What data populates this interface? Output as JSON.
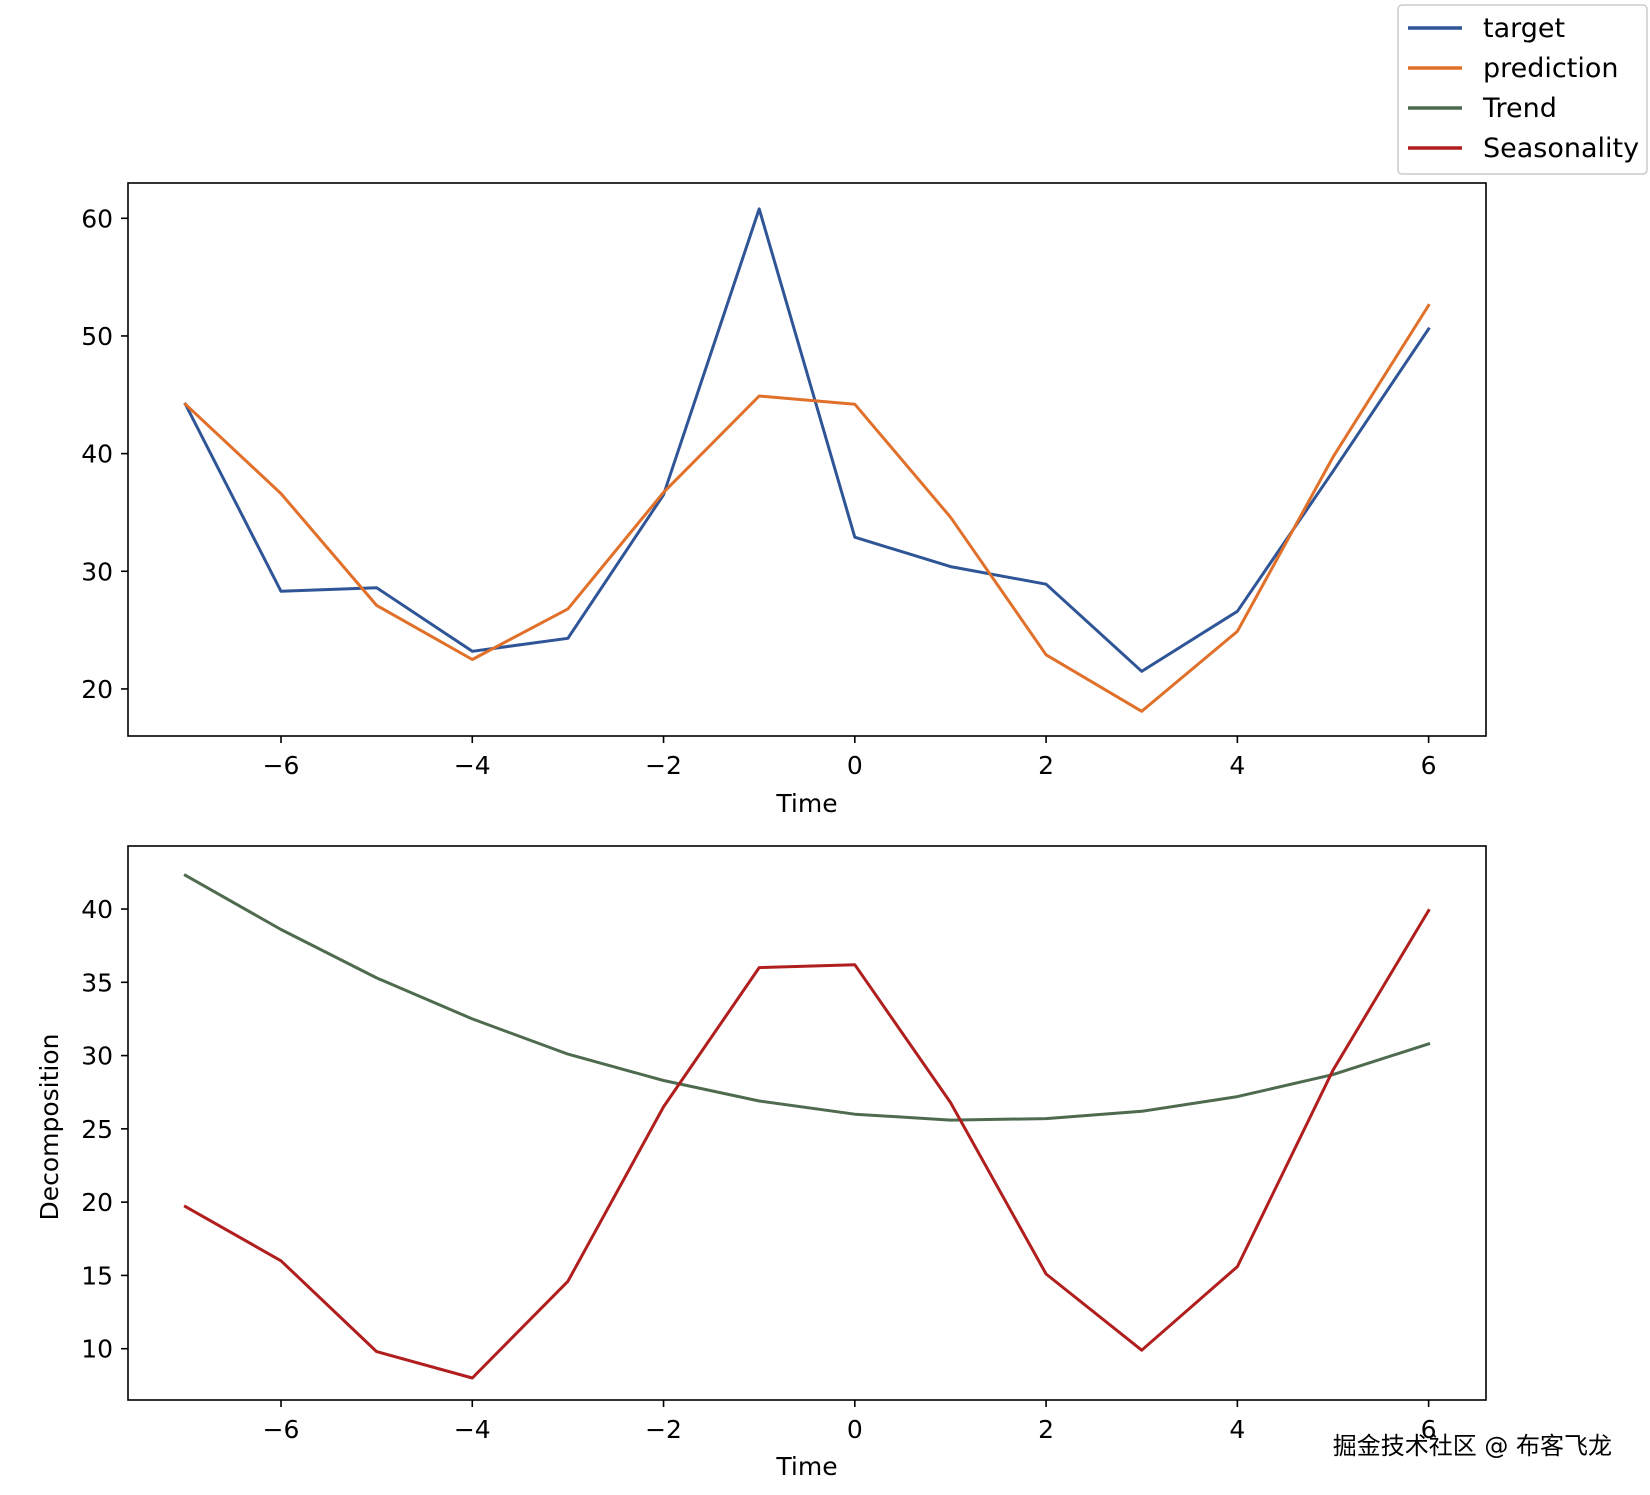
{
  "legend": {
    "placement": "top-right",
    "entries": [
      {
        "label": "target",
        "color": "#2f5597"
      },
      {
        "label": "prediction",
        "color": "#e0702a"
      },
      {
        "label": "Trend",
        "color": "#4f6b4f"
      },
      {
        "label": "Seasonality",
        "color": "#b01e1e"
      }
    ]
  },
  "watermark": "掘金技术社区 @ 布客飞龙",
  "chart_data": [
    {
      "type": "line",
      "title": "",
      "xlabel": "Time",
      "ylabel": "",
      "xlim": [
        -7.6,
        6.6
      ],
      "ylim": [
        16.0,
        63.0
      ],
      "xticks": [
        -6,
        -4,
        -2,
        0,
        2,
        4,
        6
      ],
      "xtick_labels": [
        "−6",
        "−4",
        "−2",
        "0",
        "2",
        "4",
        "6"
      ],
      "yticks": [
        20,
        30,
        40,
        50,
        60
      ],
      "ytick_labels": [
        "20",
        "30",
        "40",
        "50",
        "60"
      ],
      "x": [
        -7,
        -6,
        -5,
        -4,
        -3,
        -2,
        -1,
        0,
        1,
        2,
        3,
        4,
        5,
        6
      ],
      "series": [
        {
          "name": "target",
          "color": "#2f5597",
          "values": [
            44.2,
            28.3,
            28.6,
            23.2,
            24.3,
            36.5,
            60.8,
            32.9,
            30.4,
            28.9,
            21.5,
            26.6,
            38.5,
            50.6
          ]
        },
        {
          "name": "prediction",
          "color": "#e0702a",
          "values": [
            44.2,
            36.6,
            27.1,
            22.5,
            26.8,
            36.7,
            44.9,
            44.2,
            34.6,
            22.9,
            18.1,
            24.9,
            39.7,
            52.6
          ]
        }
      ]
    },
    {
      "type": "line",
      "title": "",
      "xlabel": "Time",
      "ylabel": "Decomposition",
      "xlim": [
        -7.6,
        6.6
      ],
      "ylim": [
        6.5,
        44.3
      ],
      "xticks": [
        -6,
        -4,
        -2,
        0,
        2,
        4,
        6
      ],
      "xtick_labels": [
        "−6",
        "−4",
        "−2",
        "0",
        "2",
        "4",
        "6"
      ],
      "yticks": [
        10,
        15,
        20,
        25,
        30,
        35,
        40
      ],
      "ytick_labels": [
        "10",
        "15",
        "20",
        "25",
        "30",
        "35",
        "40"
      ],
      "x": [
        -7,
        -6,
        -5,
        -4,
        -3,
        -2,
        -1,
        0,
        1,
        2,
        3,
        4,
        5,
        6
      ],
      "series": [
        {
          "name": "Trend",
          "color": "#4f6b4f",
          "values": [
            42.3,
            38.6,
            35.3,
            32.5,
            30.1,
            28.3,
            26.9,
            26.0,
            25.6,
            25.7,
            26.2,
            27.2,
            28.7,
            30.8
          ]
        },
        {
          "name": "Seasonality",
          "color": "#b01e1e",
          "values": [
            19.7,
            16.0,
            9.8,
            8.0,
            14.6,
            26.5,
            36.0,
            36.2,
            26.8,
            15.1,
            9.9,
            15.6,
            29.0,
            39.9
          ]
        }
      ]
    }
  ]
}
